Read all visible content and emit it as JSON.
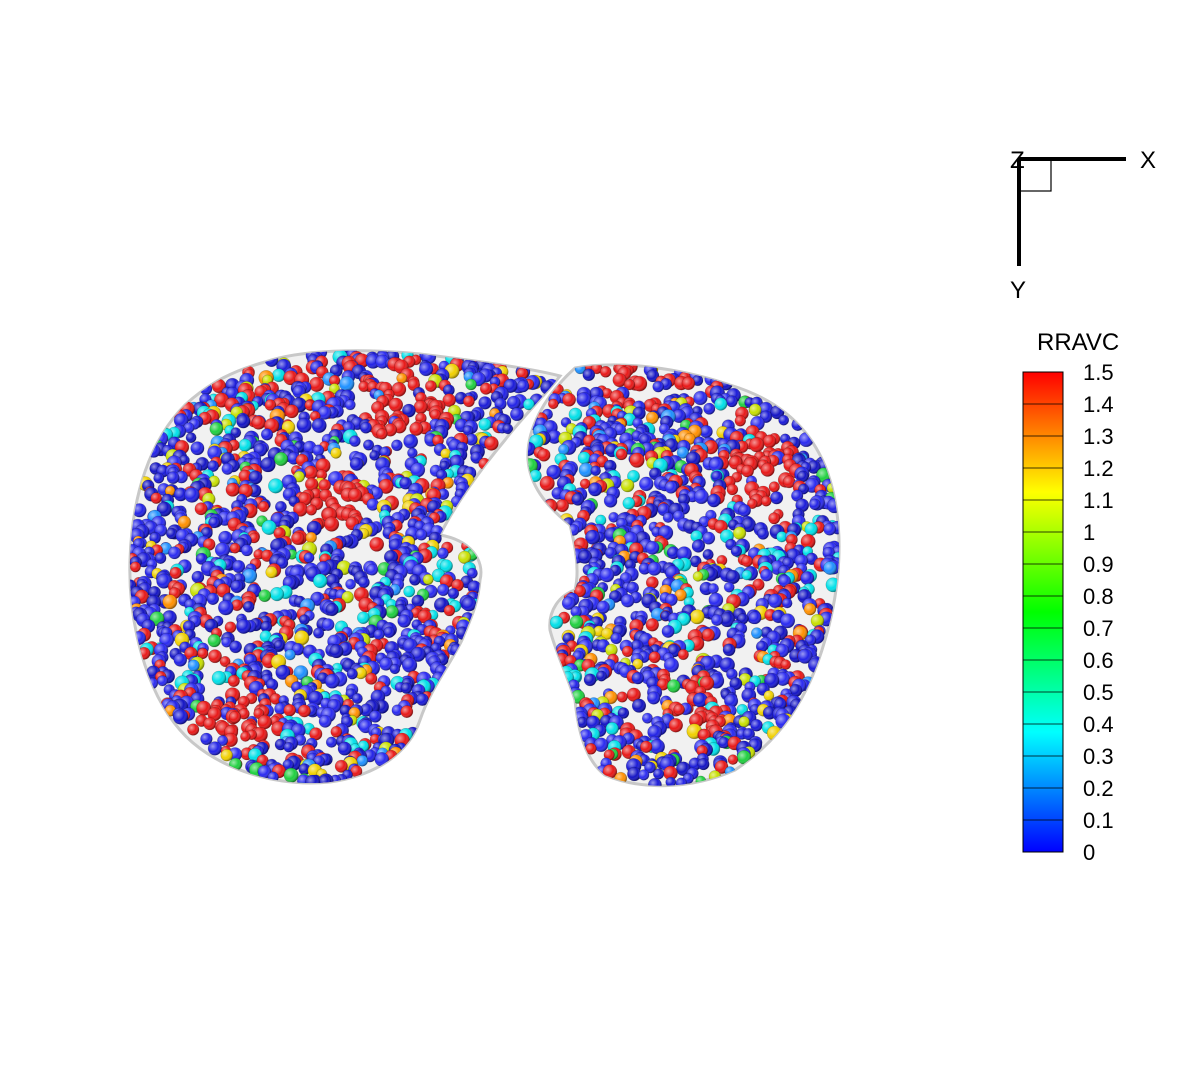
{
  "chart_data": {
    "type": "scatter",
    "description_kind": "3d-particle-scatter",
    "axes": {
      "x_label": "X",
      "y_label": "Y",
      "z_label": "Z"
    },
    "colorbar": {
      "title": "RRAVC",
      "min": 0,
      "max": 1.5,
      "tick_labels": [
        "1.5",
        "1.4",
        "1.3",
        "1.2",
        "1.1",
        "1",
        "0.9",
        "0.8",
        "0.7",
        "0.6",
        "0.5",
        "0.4",
        "0.3",
        "0.2",
        "0.1",
        "0"
      ],
      "colormap": [
        "#0000ff",
        "#0040ff",
        "#0080ff",
        "#00c0ff",
        "#00ffff",
        "#00ffc0",
        "#00ff80",
        "#00ff40",
        "#00ff00",
        "#40ff00",
        "#80ff00",
        "#c0ff00",
        "#ffff00",
        "#ffc000",
        "#ff8000",
        "#ff4000",
        "#ff0000"
      ]
    },
    "background": "#ffffff",
    "body_outline_color": "#cfcfcf",
    "particle_value_distribution": {
      "0-0.1": 0.62,
      "0.3-0.4": 0.09,
      "0.6-0.9": 0.05,
      "1.0-1.2": 0.05,
      "1.5": 0.19
    }
  }
}
